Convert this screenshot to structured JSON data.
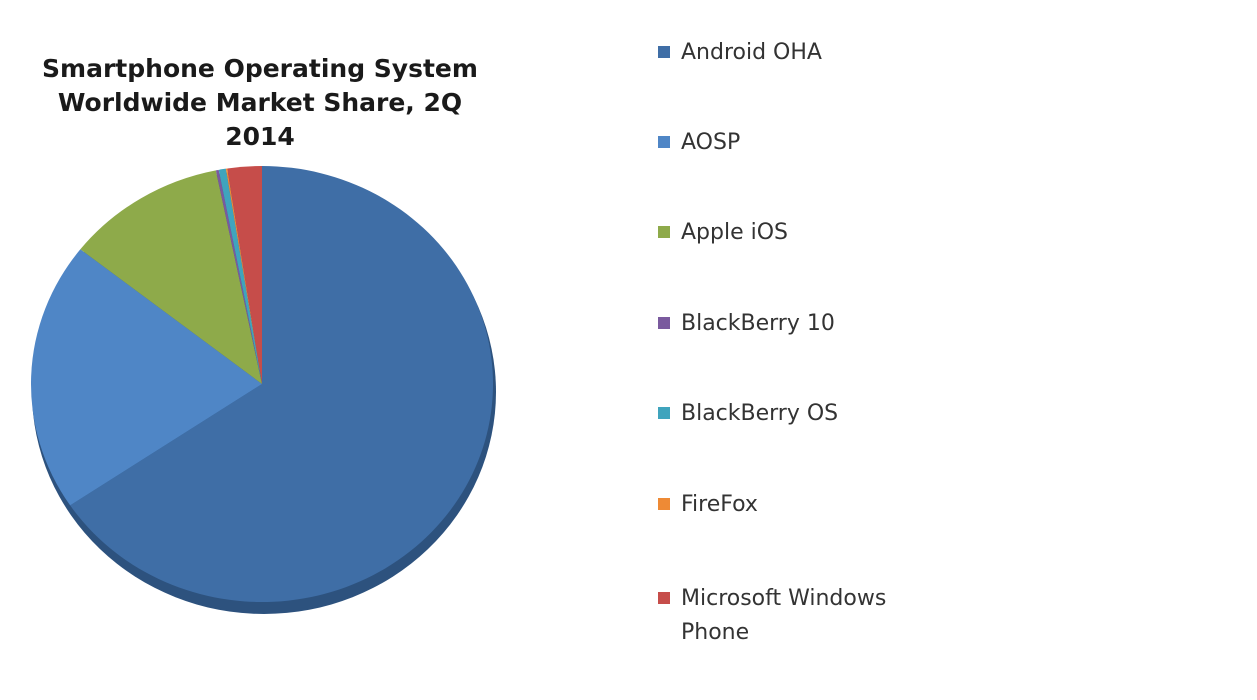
{
  "chart_data": {
    "type": "pie",
    "title": "Smartphone Operating System Worldwide Market Share, 2Q 2014",
    "title_lines": [
      "Smartphone Operating System",
      "Worldwide Market Share, 2Q 2014"
    ],
    "legend_position": "right",
    "slices": [
      {
        "label": "Android OHA",
        "value": 65.6,
        "color": "#3f6ea6"
      },
      {
        "label": "AOSP",
        "value": 20.0,
        "color": "#4f86c6"
      },
      {
        "label": "Apple iOS",
        "value": 11.2,
        "color": "#8eaa4a"
      },
      {
        "label": "BlackBerry 10",
        "value": 0.2,
        "color": "#7a5a9e"
      },
      {
        "label": "BlackBerry OS",
        "value": 0.5,
        "color": "#3fa4bd"
      },
      {
        "label": "FireFox",
        "value": 0.1,
        "color": "#ee8a35"
      },
      {
        "label": "Microsoft Windows Phone",
        "value": 2.4,
        "color": "#c64d4a"
      }
    ],
    "legend_labels": [
      [
        "Android OHA"
      ],
      [
        "AOSP"
      ],
      [
        "Apple iOS"
      ],
      [
        "BlackBerry 10"
      ],
      [
        "BlackBerry OS"
      ],
      [
        "FireFox"
      ],
      [
        "Microsoft Windows",
        "Phone"
      ]
    ]
  }
}
